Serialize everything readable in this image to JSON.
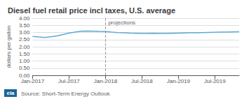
{
  "chart_data": {
    "type": "line",
    "title": "Diesel fuel retail price incl taxes, U.S. average",
    "y_label": "dollars per gallon",
    "source": "Source: Short-Term Energy Outlook",
    "logo": "eia",
    "annotation": "projections",
    "vline_x": 12,
    "grid": true,
    "xlim": [
      0,
      34
    ],
    "xticks": [
      {
        "value": 0,
        "label": "Jan-2017"
      },
      {
        "value": 6,
        "label": "Jul-2017"
      },
      {
        "value": 12,
        "label": "Jan-2018"
      },
      {
        "value": 18,
        "label": "Jul-2018"
      },
      {
        "value": 24,
        "label": "Jan-2019"
      },
      {
        "value": 30,
        "label": "Jul-2019"
      }
    ],
    "ylim": [
      0.0,
      4.0
    ],
    "yticks": [
      {
        "value": 0.0,
        "label": "0.00"
      },
      {
        "value": 0.5,
        "label": "0.50"
      },
      {
        "value": 1.0,
        "label": "1.00"
      },
      {
        "value": 1.5,
        "label": "1.50"
      },
      {
        "value": 2.0,
        "label": "2.00"
      },
      {
        "value": 2.5,
        "label": "2.50"
      },
      {
        "value": 3.0,
        "label": "3.00"
      },
      {
        "value": 3.5,
        "label": "3.50"
      },
      {
        "value": 4.0,
        "label": "4.00"
      }
    ],
    "series": [
      {
        "color": "#5baad4",
        "x": [
          0,
          1,
          2,
          3,
          4,
          5,
          6,
          7,
          8,
          9,
          10,
          11,
          12
        ],
        "values": [
          2.72,
          2.68,
          2.65,
          2.7,
          2.76,
          2.85,
          2.95,
          3.02,
          3.08,
          3.1,
          3.09,
          3.07,
          3.06
        ]
      },
      {
        "color": "#5baad4",
        "x": [
          12,
          13,
          14,
          15,
          16,
          17,
          18,
          19,
          20,
          21,
          22,
          23,
          24,
          25,
          26,
          27,
          28,
          29,
          30,
          31,
          32,
          33,
          34
        ],
        "values": [
          3.06,
          3.02,
          2.99,
          2.97,
          2.95,
          2.94,
          2.93,
          2.93,
          2.94,
          2.93,
          2.93,
          2.94,
          2.95,
          2.96,
          2.97,
          2.98,
          2.99,
          3.0,
          3.01,
          3.02,
          3.03,
          3.04,
          3.05
        ]
      }
    ]
  }
}
